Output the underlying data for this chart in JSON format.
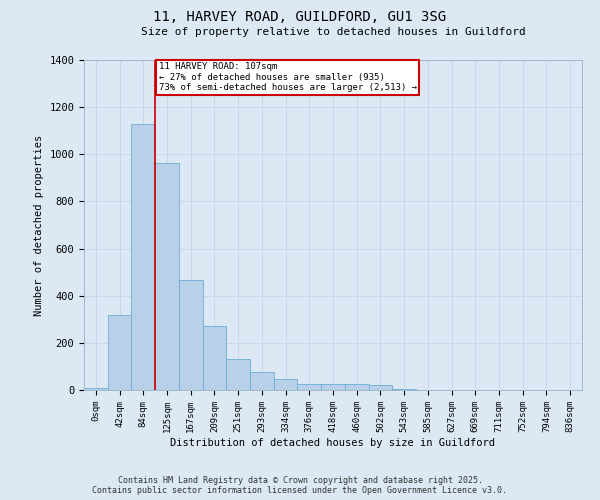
{
  "title_line1": "11, HARVEY ROAD, GUILDFORD, GU1 3SG",
  "title_line2": "Size of property relative to detached houses in Guildford",
  "xlabel": "Distribution of detached houses by size in Guildford",
  "ylabel": "Number of detached properties",
  "categories": [
    "0sqm",
    "42sqm",
    "84sqm",
    "125sqm",
    "167sqm",
    "209sqm",
    "251sqm",
    "293sqm",
    "334sqm",
    "376sqm",
    "418sqm",
    "460sqm",
    "502sqm",
    "543sqm",
    "585sqm",
    "627sqm",
    "669sqm",
    "711sqm",
    "752sqm",
    "794sqm",
    "836sqm"
  ],
  "values": [
    10,
    320,
    1130,
    965,
    465,
    270,
    130,
    75,
    47,
    25,
    27,
    25,
    20,
    5,
    0,
    0,
    0,
    0,
    0,
    0,
    0
  ],
  "bar_color": "#b8d0e8",
  "bar_edge_color": "#6baed6",
  "property_line_x": 2.5,
  "annotation_line1": "11 HARVEY ROAD: 107sqm",
  "annotation_line2": "← 27% of detached houses are smaller (935)",
  "annotation_line3": "73% of semi-detached houses are larger (2,513) →",
  "annotation_box_color": "#ffffff",
  "annotation_box_edge_color": "#cc0000",
  "vline_color": "#cc0000",
  "grid_color": "#c8d8e8",
  "background_color": "#dce9f5",
  "ylim": [
    0,
    1400
  ],
  "yticks": [
    0,
    200,
    400,
    600,
    800,
    1000,
    1200,
    1400
  ],
  "footer_line1": "Contains HM Land Registry data © Crown copyright and database right 2025.",
  "footer_line2": "Contains public sector information licensed under the Open Government Licence v3.0."
}
